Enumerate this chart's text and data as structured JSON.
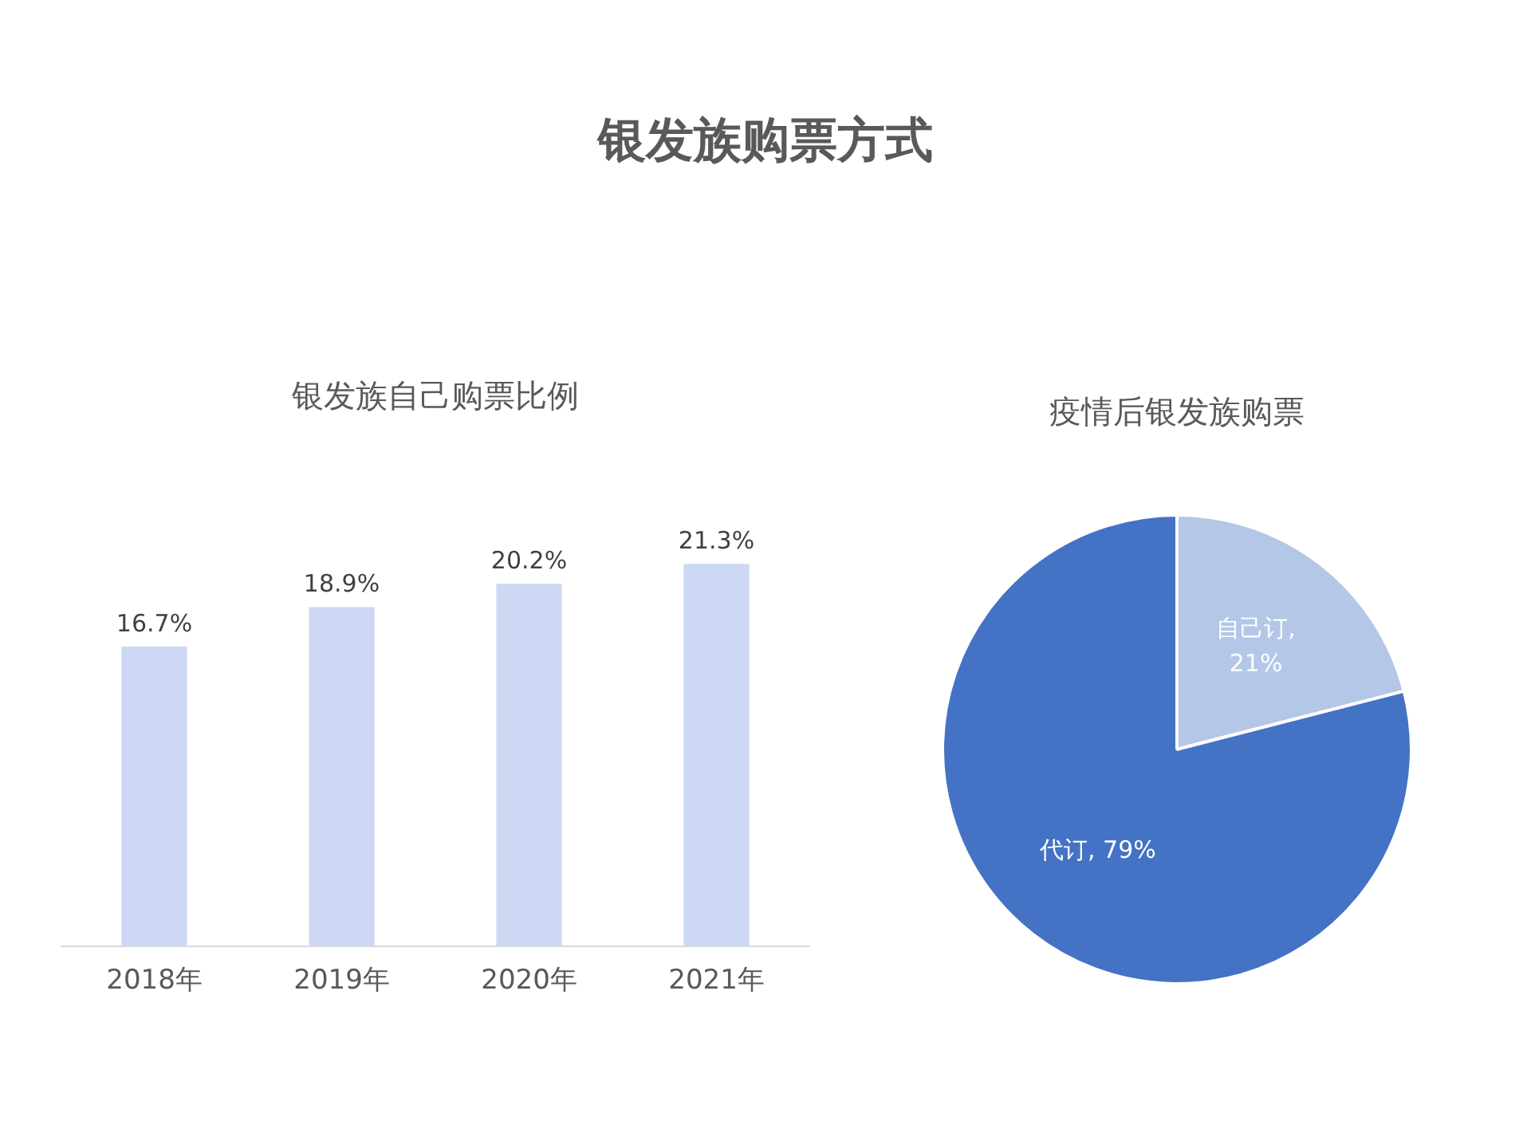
{
  "chart_data": [
    {
      "type": "other",
      "title": "银发族购票方式"
    },
    {
      "type": "bar",
      "title": "银发族自己购票比例",
      "categories": [
        "2018年",
        "2019年",
        "2020年",
        "2021年"
      ],
      "values": [
        16.7,
        18.9,
        20.2,
        21.3
      ],
      "value_labels": [
        "16.7%",
        "18.9%",
        "20.2%",
        "21.3%"
      ],
      "color": "#cdd9f4",
      "tick_labels": "x",
      "grid": false,
      "legend": false
    },
    {
      "type": "pie",
      "title": "疫情后银发族购票",
      "categories": [
        "自己订",
        "代订"
      ],
      "values": [
        21,
        79
      ],
      "colors": [
        "#b4c7e7",
        "#4472c4"
      ],
      "value_labels": [
        ",\n21%",
        ", 79%"
      ],
      "legend": false
    }
  ]
}
